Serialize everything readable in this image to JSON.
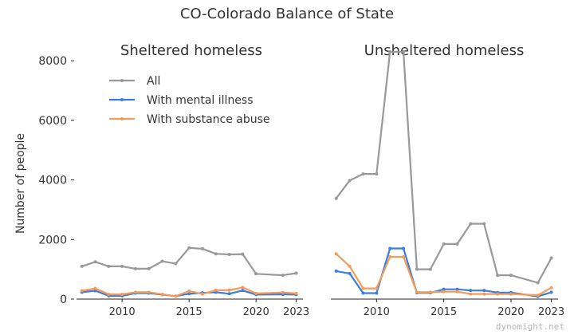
{
  "chart_data": {
    "type": "line",
    "title": "CO-Colorado Balance of State",
    "ylabel": "Number of people",
    "ylim": [
      0,
      8500
    ],
    "y_ticks": [
      0,
      2000,
      4000,
      6000,
      8000
    ],
    "x_ticks": [
      2010,
      2015,
      2020,
      2023
    ],
    "xlim": [
      2006.6,
      2023.5
    ],
    "grid": false,
    "legend": {
      "placement": "top-left of left panel",
      "entries": [
        "All",
        "With mental illness",
        "With substance abuse"
      ]
    },
    "colors": {
      "All": "#999999",
      "With mental illness": "#3a7fdb",
      "With substance abuse": "#f59a57"
    },
    "panels": [
      {
        "subtitle": "Sheltered homeless",
        "x": [
          2007,
          2008,
          2009,
          2010,
          2011,
          2012,
          2013,
          2014,
          2015,
          2016,
          2017,
          2018,
          2019,
          2020,
          2022,
          2023
        ],
        "series": [
          {
            "name": "All",
            "values": [
              1100,
              1250,
              1100,
              1100,
              1020,
              1020,
              1270,
              1190,
              1720,
              1690,
              1520,
              1500,
              1510,
              850,
              800,
              870
            ]
          },
          {
            "name": "With mental illness",
            "values": [
              230,
              280,
              110,
              110,
              200,
              200,
              150,
              100,
              180,
              210,
              230,
              180,
              290,
              150,
              160,
              150
            ]
          },
          {
            "name": "With substance abuse",
            "values": [
              280,
              360,
              160,
              160,
              230,
              230,
              160,
              100,
              270,
              170,
              300,
              300,
              390,
              190,
              220,
              190
            ]
          }
        ]
      },
      {
        "subtitle": "Unsheltered homeless",
        "x": [
          2007,
          2008,
          2009,
          2010,
          2011,
          2012,
          2013,
          2014,
          2015,
          2016,
          2017,
          2018,
          2019,
          2020,
          2022,
          2023
        ],
        "series": [
          {
            "name": "All",
            "values": [
              3380,
              3980,
              4200,
              4200,
              8300,
              8300,
              1000,
              1000,
              1850,
              1850,
              2530,
              2530,
              800,
              800,
              550,
              1380
            ]
          },
          {
            "name": "With mental illness",
            "values": [
              940,
              860,
              200,
              200,
              1700,
              1700,
              210,
              210,
              330,
              330,
              290,
              290,
              220,
              220,
              90,
              230
            ]
          },
          {
            "name": "With substance abuse",
            "values": [
              1520,
              1100,
              360,
              360,
              1420,
              1420,
              230,
              230,
              250,
              250,
              170,
              170,
              170,
              170,
              130,
              380
            ]
          }
        ]
      }
    ]
  },
  "watermark": "dynomight.net"
}
